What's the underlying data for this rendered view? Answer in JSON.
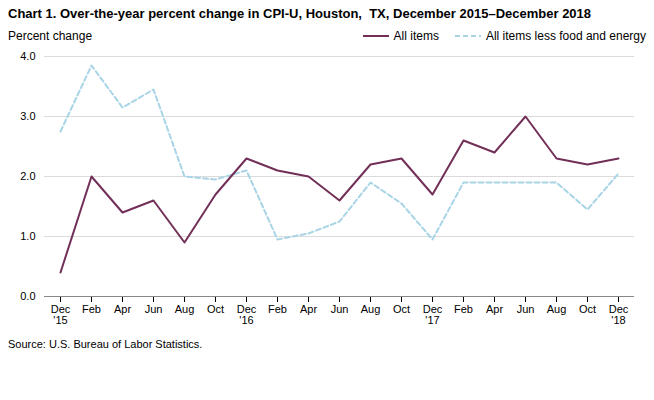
{
  "chart_data": {
    "type": "line",
    "title": "Chart 1. Over-the-year percent change in CPI-U, Houston,  TX, December 2015–December 2018",
    "ylabel": "Percent change",
    "source": "Source: U.S. Bureau of Labor Statistics.",
    "categories": [
      "Dec\n'15",
      "Feb",
      "Apr",
      "Jun",
      "Aug",
      "Oct",
      "Dec\n'16",
      "Feb",
      "Apr",
      "Jun",
      "Aug",
      "Oct",
      "Dec\n'17",
      "Feb",
      "Apr",
      "Jun",
      "Aug",
      "Oct",
      "Dec\n'18"
    ],
    "series": [
      {
        "name": "All items",
        "color": "#722F57",
        "line_style": "solid",
        "values": [
          0.4,
          2.0,
          1.4,
          1.6,
          0.9,
          1.7,
          2.3,
          2.1,
          2.0,
          1.6,
          2.2,
          2.3,
          1.7,
          2.6,
          2.4,
          3.0,
          2.3,
          2.2,
          2.3
        ]
      },
      {
        "name": "All items less food and energy",
        "color": "#a8d4e6",
        "line_style": "dashed",
        "values": [
          2.75,
          3.85,
          3.15,
          3.45,
          2.0,
          1.95,
          2.1,
          0.95,
          1.05,
          1.25,
          1.9,
          1.55,
          0.95,
          1.9,
          1.9,
          1.9,
          1.9,
          1.45,
          2.05
        ]
      }
    ],
    "ylim": [
      0.0,
      4.0
    ],
    "yticks": [
      {
        "value": 0,
        "label": "0.0"
      },
      {
        "value": 1,
        "label": "1.0"
      },
      {
        "value": 2,
        "label": "2.0"
      },
      {
        "value": 3,
        "label": "3.0"
      },
      {
        "value": 4,
        "label": "4.0"
      }
    ],
    "grid": true,
    "legend": "upper right"
  }
}
